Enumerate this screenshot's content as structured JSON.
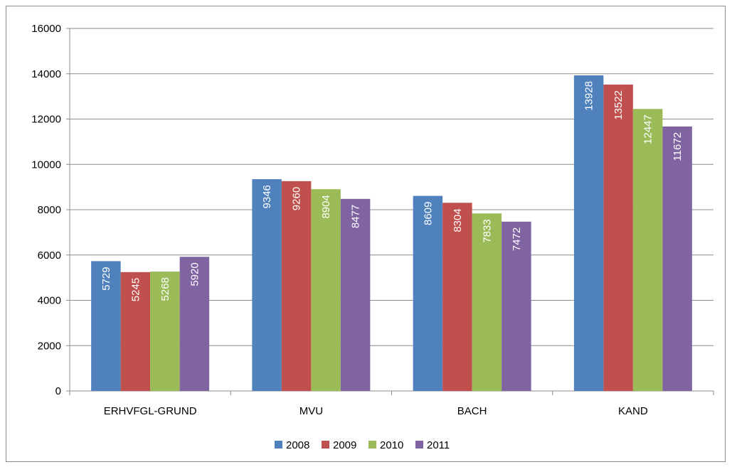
{
  "chart_data": {
    "type": "bar",
    "categories": [
      "ERHVFGL-GRUND",
      "MVU",
      "BACH",
      "KAND"
    ],
    "series": [
      {
        "name": "2008",
        "values": [
          5729,
          9346,
          8609,
          13928
        ],
        "color": "#4f81bd"
      },
      {
        "name": "2009",
        "values": [
          5245,
          9260,
          8304,
          13522
        ],
        "color": "#c0504d"
      },
      {
        "name": "2010",
        "values": [
          5268,
          8904,
          7833,
          12447
        ],
        "color": "#9bbb59"
      },
      {
        "name": "2011",
        "values": [
          5920,
          8477,
          7472,
          11672
        ],
        "color": "#8064a2"
      }
    ],
    "ylim": [
      0,
      16000
    ],
    "yticks": [
      0,
      2000,
      4000,
      6000,
      8000,
      10000,
      12000,
      14000,
      16000
    ],
    "grid": true,
    "legend": "bottom",
    "data_labels": "inside-end-rotated"
  }
}
